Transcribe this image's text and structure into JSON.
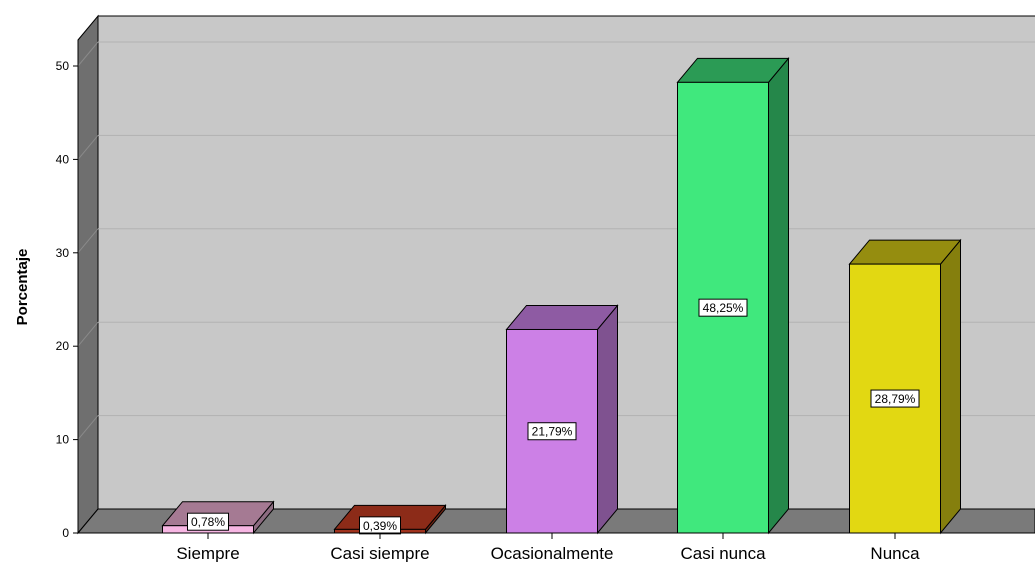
{
  "chart_data": {
    "type": "bar",
    "ylabel": "Porcentaje",
    "ylim": [
      0,
      50
    ],
    "yticks": [
      0,
      10,
      20,
      30,
      40,
      50
    ],
    "grid": true,
    "categories": [
      "Siempre",
      "Casi siempre",
      "Ocasionalmente",
      "Casi nunca",
      "Nunca"
    ],
    "values": [
      0.78,
      0.39,
      21.79,
      48.25,
      28.79
    ],
    "data_labels": [
      "0,78%",
      "0,39%",
      "21,79%",
      "48,25%",
      "28,79%"
    ],
    "colors": {
      "front": [
        "#f7b6e3",
        "#a0321d",
        "#cc80e6",
        "#40e87d",
        "#e2d812"
      ],
      "side": [
        "#8c6b80",
        "#6e2414",
        "#7f5290",
        "#25874a",
        "#857f0d"
      ],
      "top": [
        "#a57a93",
        "#8c2b18",
        "#8e5ba3",
        "#2b9b55",
        "#958d0f"
      ],
      "plot_back": "#c8c8c8",
      "wall_left": "#6f6f6f",
      "floor": "#7a7a7a",
      "gridline": "#b2b2b2"
    }
  }
}
